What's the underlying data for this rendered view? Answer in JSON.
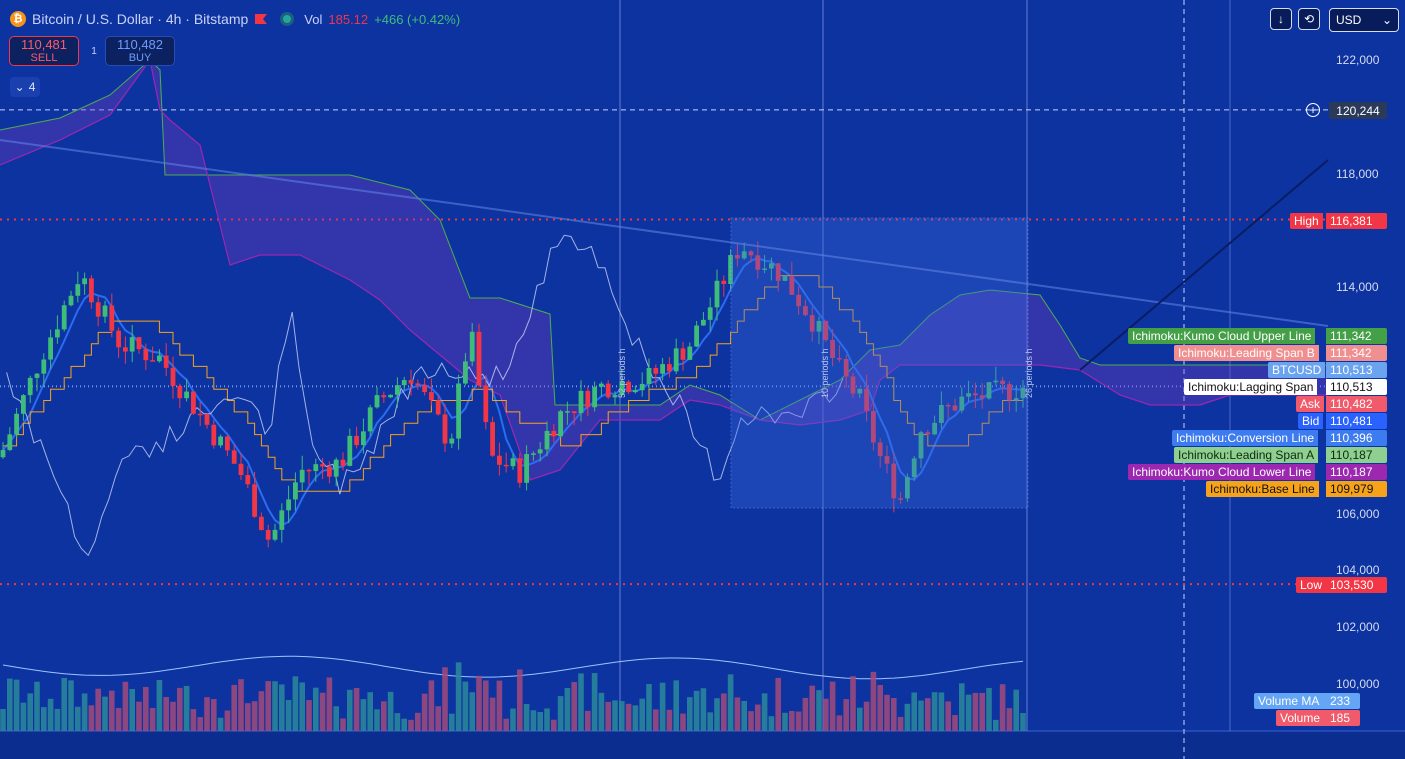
{
  "header": {
    "logo_glyph": "₿",
    "symbol_title": "Bitcoin / U.S. Dollar · 4h · Bitstamp",
    "volume_label": "Vol",
    "volume_value": "185.12",
    "change_value": "+466 (+0.42%)"
  },
  "trade": {
    "sell_price": "110,481",
    "sell_label": "SELL",
    "spread": "1",
    "buy_price": "110,482",
    "buy_label": "BUY"
  },
  "indicators_toggle": {
    "count": "4"
  },
  "toolbar": {
    "currency": "USD"
  },
  "price_axis": {
    "ticks": [
      "122,000",
      "118,000",
      "114,000",
      "106,000",
      "104,000",
      "102,000",
      "100,000"
    ],
    "crosshair_price": "120,244"
  },
  "period_notes": [
    "52 periods h",
    "10 periods h",
    "26 periods h"
  ],
  "tags": {
    "high": {
      "label": "High",
      "value": "116,381"
    },
    "low": {
      "label": "Low",
      "value": "103,530"
    },
    "kumo_upper": {
      "label": "Ichimoku:Kumo Cloud Upper Line",
      "value": "111,342"
    },
    "leading_b": {
      "label": "Ichimoku:Leading Span B",
      "value": "111,342"
    },
    "btcusd": {
      "label": "BTCUSD",
      "value": "110,513"
    },
    "lagging": {
      "label": "Ichimoku:Lagging Span",
      "value": "110,513"
    },
    "ask": {
      "label": "Ask",
      "value": "110,482"
    },
    "bid": {
      "label": "Bid",
      "value": "110,481"
    },
    "conversion": {
      "label": "Ichimoku:Conversion Line",
      "value": "110,396"
    },
    "leading_a": {
      "label": "Ichimoku:Leading Span A",
      "value": "110,187"
    },
    "kumo_lower": {
      "label": "Ichimoku:Kumo Cloud Lower Line",
      "value": "110,187"
    },
    "base": {
      "label": "Ichimoku:Base Line",
      "value": "109,979"
    },
    "volume_ma": {
      "label": "Volume MA",
      "value": "233"
    },
    "volume": {
      "label": "Volume",
      "value": "185"
    }
  },
  "colors": {
    "background": "#0d33a0",
    "bull": "#3ebc7a",
    "bear": "#f23645",
    "conversion": "#2a6cf5",
    "base": "#f7a21b",
    "span_a": "#4caf50",
    "span_b": "#9c27b0",
    "lagging": "#c9d3f7"
  },
  "chart_data": {
    "type": "candlestick",
    "symbol": "BTCUSD",
    "interval": "4h",
    "ylim": [
      99000,
      123500
    ],
    "high": 116381,
    "low": 103530,
    "last": 110513
  }
}
